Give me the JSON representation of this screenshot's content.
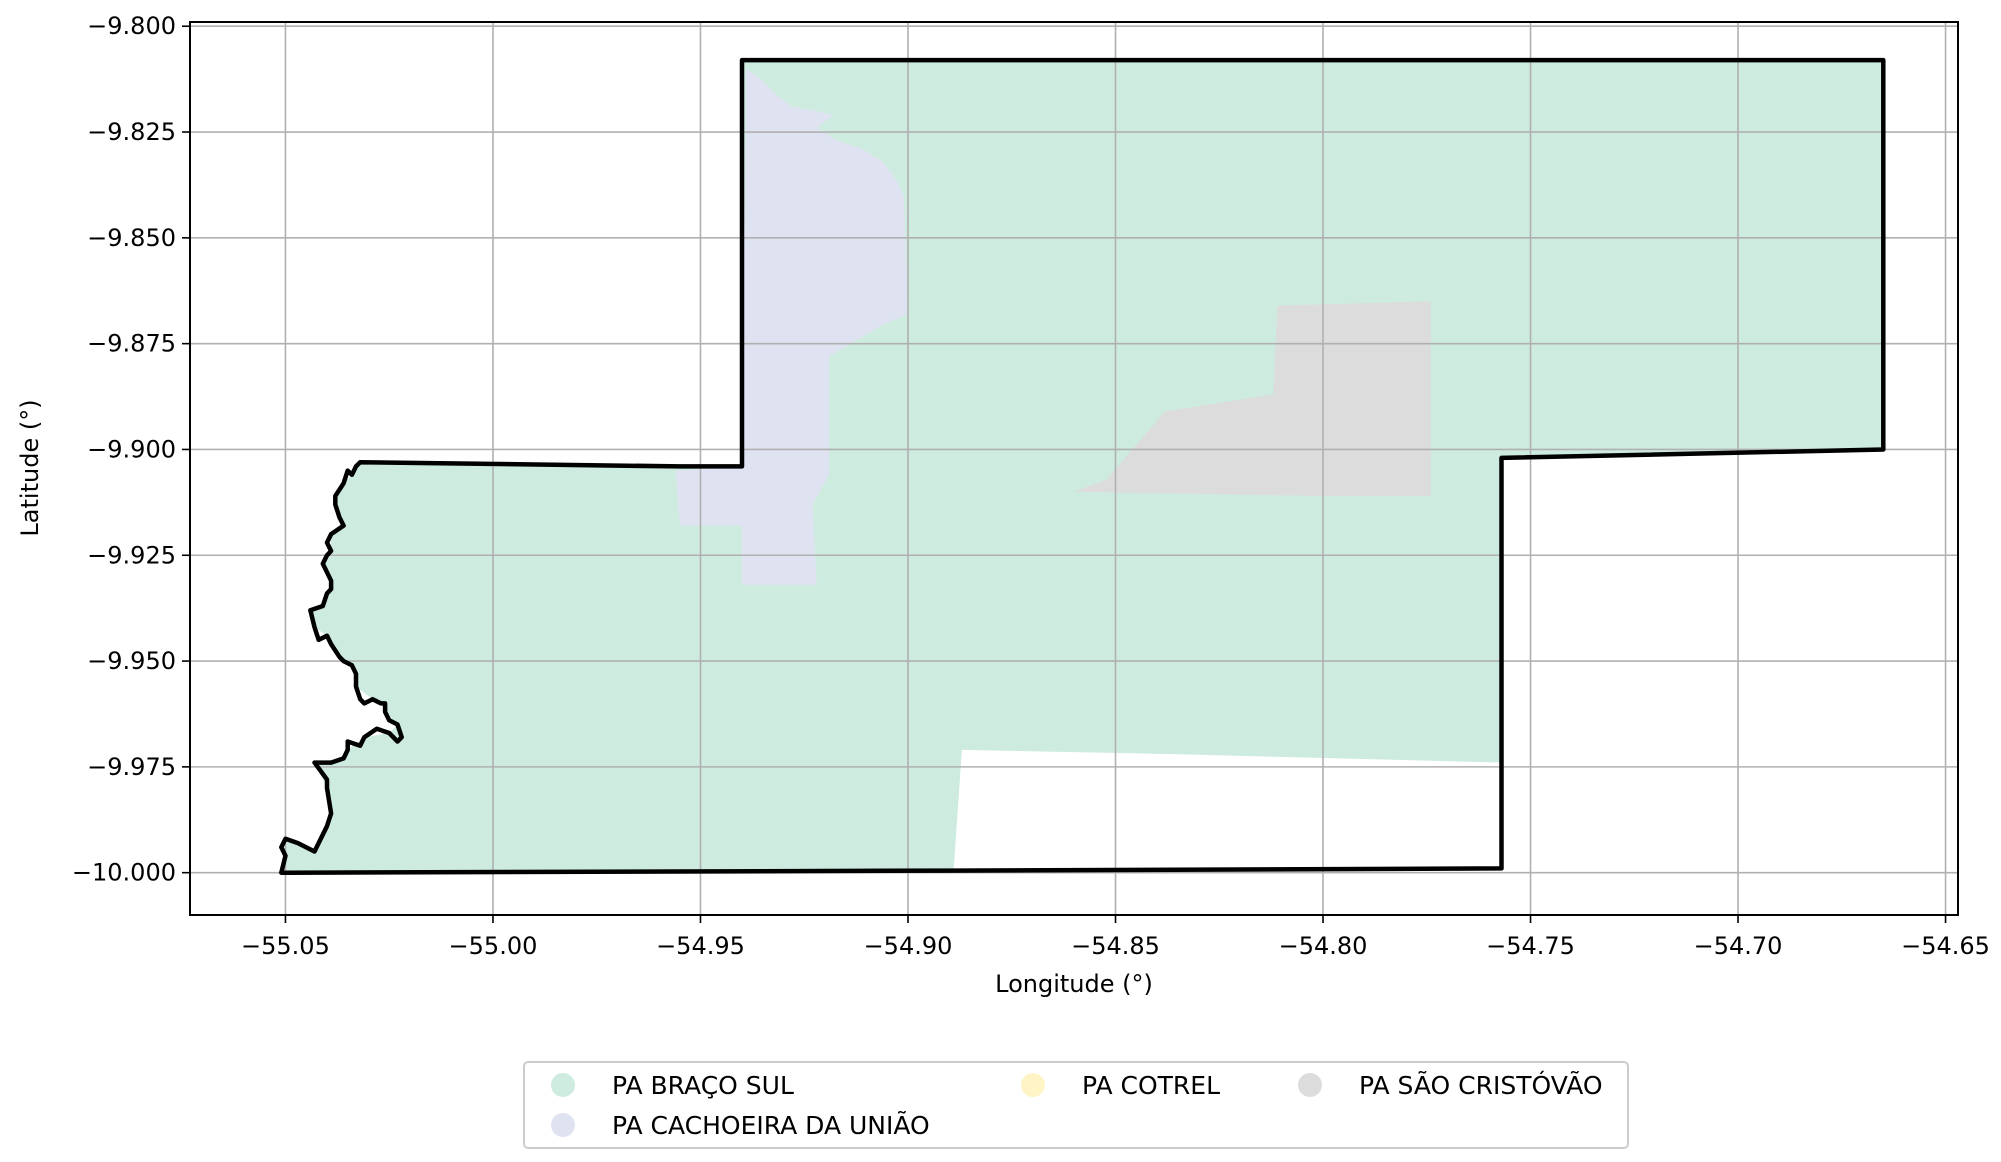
{
  "chart_data": {
    "type": "map",
    "xlabel": "Longitude (°)",
    "ylabel": "Latitude (°)",
    "xlim": [
      -55.073,
      -54.647
    ],
    "ylim": [
      -10.01,
      -9.799
    ],
    "grid": true,
    "legend_position": "bottom-center",
    "x_ticks": [
      {
        "value": -55.05,
        "label": "−55.05"
      },
      {
        "value": -55.0,
        "label": "−55.00"
      },
      {
        "value": -54.95,
        "label": "−54.95"
      },
      {
        "value": -54.9,
        "label": "−54.90"
      },
      {
        "value": -54.85,
        "label": "−54.85"
      },
      {
        "value": -54.8,
        "label": "−54.80"
      },
      {
        "value": -54.75,
        "label": "−54.75"
      },
      {
        "value": -54.7,
        "label": "−54.70"
      },
      {
        "value": -54.65,
        "label": "−54.65"
      }
    ],
    "y_ticks": [
      {
        "value": -9.8,
        "label": "−9.800"
      },
      {
        "value": -9.825,
        "label": "−9.825"
      },
      {
        "value": -9.85,
        "label": "−9.850"
      },
      {
        "value": -9.875,
        "label": "−9.875"
      },
      {
        "value": -9.9,
        "label": "−9.900"
      },
      {
        "value": -9.925,
        "label": "−9.925"
      },
      {
        "value": -9.95,
        "label": "−9.950"
      },
      {
        "value": -9.975,
        "label": "−9.975"
      },
      {
        "value": -10.0,
        "label": "−10.000"
      }
    ],
    "legend": [
      {
        "label": "PA BRAÇO SUL",
        "color": "#cdebdf"
      },
      {
        "label": "PA CACHOEIRA DA UNIÃO",
        "color": "#dfe3f1"
      },
      {
        "label": "PA COTREL",
        "color": "#fff4c6"
      },
      {
        "label": "PA SÃO CRISTÓVÃO",
        "color": "#dcdcdc"
      }
    ],
    "regions": [
      {
        "name": "PA BRAÇO SUL",
        "color": "#cdebdf",
        "polygon": [
          [
            -54.94,
            -9.808
          ],
          [
            -54.665,
            -9.808
          ],
          [
            -54.665,
            -9.9
          ],
          [
            -54.757,
            -9.902
          ],
          [
            -54.757,
            -9.974
          ],
          [
            -54.835,
            -9.972
          ],
          [
            -54.887,
            -9.971
          ],
          [
            -54.889,
            -9.9995
          ],
          [
            -55.05,
            -10.0
          ],
          [
            -55.05,
            -9.992
          ],
          [
            -55.047,
            -9.993
          ],
          [
            -55.043,
            -9.995
          ],
          [
            -55.04,
            -9.989
          ],
          [
            -55.039,
            -9.986
          ],
          [
            -55.04,
            -9.98
          ],
          [
            -55.043,
            -9.974
          ],
          [
            -55.036,
            -9.973
          ],
          [
            -55.035,
            -9.971
          ],
          [
            -55.031,
            -9.968
          ],
          [
            -55.025,
            -9.967
          ],
          [
            -55.023,
            -9.965
          ],
          [
            -55.026,
            -9.962
          ],
          [
            -55.027,
            -9.96
          ],
          [
            -55.029,
            -9.959
          ],
          [
            -55.033,
            -9.956
          ],
          [
            -55.034,
            -9.951
          ],
          [
            -55.036,
            -9.95
          ],
          [
            -55.04,
            -9.944
          ],
          [
            -55.043,
            -9.942
          ],
          [
            -55.044,
            -9.938
          ],
          [
            -55.041,
            -9.937
          ],
          [
            -55.04,
            -9.934
          ],
          [
            -55.039,
            -9.931
          ],
          [
            -55.041,
            -9.927
          ],
          [
            -55.039,
            -9.924
          ],
          [
            -55.039,
            -9.92
          ],
          [
            -55.036,
            -9.918
          ],
          [
            -55.037,
            -9.916
          ],
          [
            -55.038,
            -9.911
          ],
          [
            -55.036,
            -9.908
          ],
          [
            -55.034,
            -9.906
          ],
          [
            -55.032,
            -9.903
          ],
          [
            -54.955,
            -9.904
          ],
          [
            -54.94,
            -9.904
          ]
        ]
      },
      {
        "name": "PA CACHOEIRA DA UNIÃO",
        "color": "#dfe3f1",
        "polygon": [
          [
            -54.939,
            -9.81
          ],
          [
            -54.936,
            -9.812
          ],
          [
            -54.932,
            -9.816
          ],
          [
            -54.928,
            -9.819
          ],
          [
            -54.922,
            -9.82
          ],
          [
            -54.918,
            -9.821
          ],
          [
            -54.922,
            -9.824
          ],
          [
            -54.917,
            -9.827
          ],
          [
            -54.911,
            -9.829
          ],
          [
            -54.906,
            -9.832
          ],
          [
            -54.903,
            -9.836
          ],
          [
            -54.901,
            -9.84
          ],
          [
            -54.9,
            -9.868
          ],
          [
            -54.907,
            -9.871
          ],
          [
            -54.912,
            -9.874
          ],
          [
            -54.919,
            -9.878
          ],
          [
            -54.919,
            -9.883
          ],
          [
            -54.919,
            -9.906
          ],
          [
            -54.923,
            -9.913
          ],
          [
            -54.922,
            -9.932
          ],
          [
            -54.94,
            -9.932
          ],
          [
            -54.94,
            -9.918
          ],
          [
            -54.955,
            -9.918
          ],
          [
            -54.956,
            -9.905
          ],
          [
            -54.94,
            -9.904
          ]
        ]
      },
      {
        "name": "PA SÃO CRISTÓVÃO",
        "color": "#dcdcdc",
        "polygon": [
          [
            -54.811,
            -9.866
          ],
          [
            -54.774,
            -9.865
          ],
          [
            -54.774,
            -9.911
          ],
          [
            -54.8,
            -9.911
          ],
          [
            -54.86,
            -9.91
          ],
          [
            -54.852,
            -9.907
          ],
          [
            -54.846,
            -9.9
          ],
          [
            -54.838,
            -9.891
          ],
          [
            -54.812,
            -9.887
          ]
        ]
      }
    ],
    "boundary": [
      [
        -54.94,
        -9.808
      ],
      [
        -54.665,
        -9.808
      ],
      [
        -54.665,
        -9.9
      ],
      [
        -54.757,
        -9.902
      ],
      [
        -54.757,
        -9.999
      ],
      [
        -54.889,
        -9.9995
      ],
      [
        -55.05,
        -10.0
      ],
      [
        -55.051,
        -10.0
      ],
      [
        -55.05,
        -9.996
      ],
      [
        -55.051,
        -9.994
      ],
      [
        -55.05,
        -9.992
      ],
      [
        -55.047,
        -9.993
      ],
      [
        -55.043,
        -9.995
      ],
      [
        -55.04,
        -9.989
      ],
      [
        -55.039,
        -9.986
      ],
      [
        -55.04,
        -9.98
      ],
      [
        -55.04,
        -9.978
      ],
      [
        -55.043,
        -9.974
      ],
      [
        -55.039,
        -9.974
      ],
      [
        -55.036,
        -9.973
      ],
      [
        -55.035,
        -9.971
      ],
      [
        -55.035,
        -9.969
      ],
      [
        -55.032,
        -9.97
      ],
      [
        -55.031,
        -9.968
      ],
      [
        -55.028,
        -9.966
      ],
      [
        -55.025,
        -9.967
      ],
      [
        -55.023,
        -9.969
      ],
      [
        -55.022,
        -9.968
      ],
      [
        -55.023,
        -9.965
      ],
      [
        -55.025,
        -9.964
      ],
      [
        -55.026,
        -9.962
      ],
      [
        -55.026,
        -9.96
      ],
      [
        -55.027,
        -9.96
      ],
      [
        -55.029,
        -9.959
      ],
      [
        -55.031,
        -9.96
      ],
      [
        -55.032,
        -9.959
      ],
      [
        -55.033,
        -9.956
      ],
      [
        -55.033,
        -9.953
      ],
      [
        -55.034,
        -9.951
      ],
      [
        -55.036,
        -9.95
      ],
      [
        -55.037,
        -9.949
      ],
      [
        -55.039,
        -9.946
      ],
      [
        -55.04,
        -9.944
      ],
      [
        -55.042,
        -9.945
      ],
      [
        -55.043,
        -9.942
      ],
      [
        -55.044,
        -9.938
      ],
      [
        -55.041,
        -9.937
      ],
      [
        -55.04,
        -9.934
      ],
      [
        -55.039,
        -9.933
      ],
      [
        -55.039,
        -9.931
      ],
      [
        -55.041,
        -9.927
      ],
      [
        -55.04,
        -9.925
      ],
      [
        -55.039,
        -9.924
      ],
      [
        -55.04,
        -9.922
      ],
      [
        -55.039,
        -9.92
      ],
      [
        -55.036,
        -9.918
      ],
      [
        -55.037,
        -9.916
      ],
      [
        -55.038,
        -9.913
      ],
      [
        -55.038,
        -9.911
      ],
      [
        -55.036,
        -9.908
      ],
      [
        -55.035,
        -9.905
      ],
      [
        -55.034,
        -9.906
      ],
      [
        -55.033,
        -9.904
      ],
      [
        -55.032,
        -9.903
      ],
      [
        -54.955,
        -9.904
      ],
      [
        -54.94,
        -9.904
      ],
      [
        -54.94,
        -9.808
      ]
    ]
  }
}
